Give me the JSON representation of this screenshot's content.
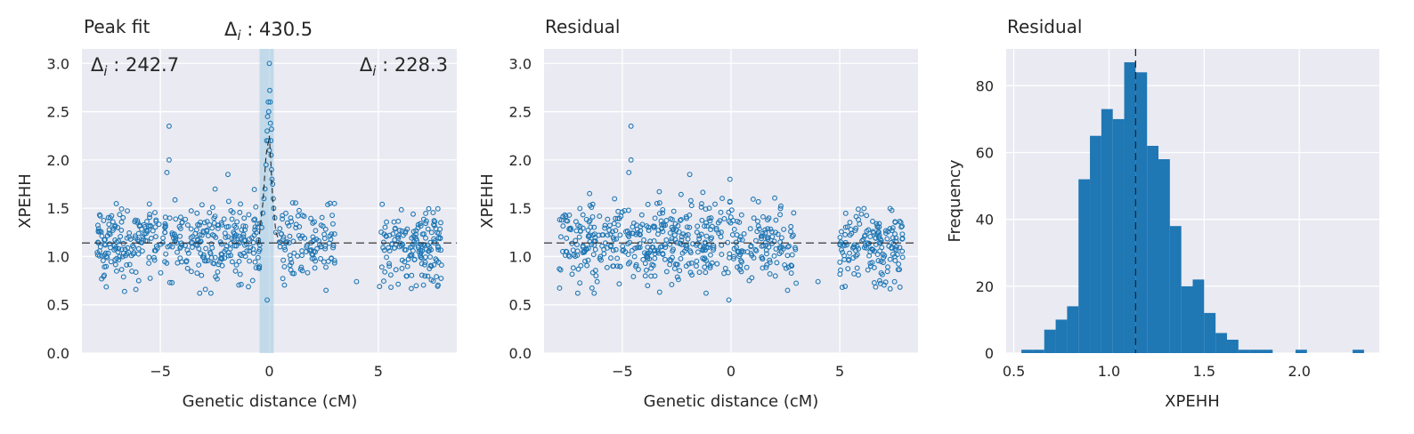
{
  "colors": {
    "background": "#eaeaf2",
    "grid": "#ffffff",
    "marker": "#1f77b4",
    "bar": "#1f77b4",
    "band": "#9ecae1",
    "reference_line": "#262626"
  },
  "panels": {
    "peak_fit": {
      "title": "Peak fit",
      "xlabel": "Genetic distance (cM)",
      "ylabel": "XPEHH"
    },
    "residual_scatter": {
      "title": "Residual",
      "xlabel": "Genetic distance (cM)",
      "ylabel": "XPEHH"
    },
    "residual_hist": {
      "title": "Residual",
      "xlabel": "XPEHH",
      "ylabel": "Frequency"
    }
  },
  "annotations": {
    "delta_left": "Δi : 242.7",
    "delta_center": "Δi : 430.5",
    "delta_right": "Δi : 228.3"
  },
  "chart_data": [
    {
      "type": "scatter",
      "title": "Peak fit",
      "xlabel": "Genetic distance (cM)",
      "ylabel": "XPEHH",
      "xlim": [
        -8.6,
        8.6
      ],
      "ylim": [
        0,
        3.15
      ],
      "xticks": [
        -5,
        0,
        5
      ],
      "xtick_labels": [
        "−5",
        "0",
        "5"
      ],
      "yticks": [
        0,
        0.5,
        1.0,
        1.5,
        2.0,
        2.5,
        3.0
      ],
      "ytick_labels": [
        "0.0",
        "0.5",
        "1.0",
        "1.5",
        "2.0",
        "2.5",
        "3.0"
      ],
      "baseline": 1.14,
      "highlight_band": [
        -0.45,
        0.2
      ],
      "peak_line": {
        "x": [
          -0.5,
          -0.3,
          -0.15,
          0.0,
          0.05,
          0.15,
          0.3,
          0.5
        ],
        "y": [
          1.14,
          1.55,
          2.05,
          2.25,
          2.05,
          1.6,
          1.25,
          1.14
        ]
      },
      "clusters": [
        {
          "x_range": [
            -7.9,
            -0.4
          ],
          "n": 380,
          "mean": 1.14,
          "sd": 0.2
        },
        {
          "x_range": [
            0.3,
            3.0
          ],
          "n": 110,
          "mean": 1.14,
          "sd": 0.19
        },
        {
          "x_range": [
            5.0,
            7.9
          ],
          "n": 160,
          "mean": 1.11,
          "sd": 0.19
        }
      ],
      "peak_points": [
        [
          -0.3,
          1.45
        ],
        [
          -0.25,
          1.6
        ],
        [
          -0.2,
          1.7
        ],
        [
          -0.15,
          1.95
        ],
        [
          -0.12,
          2.2
        ],
        [
          -0.1,
          2.3
        ],
        [
          -0.08,
          2.45
        ],
        [
          -0.05,
          2.2
        ],
        [
          -0.03,
          2.5
        ],
        [
          0.0,
          2.1
        ],
        [
          0.0,
          3.0
        ],
        [
          0.02,
          2.72
        ],
        [
          0.04,
          2.6
        ],
        [
          0.05,
          2.38
        ],
        [
          0.07,
          2.2
        ],
        [
          0.08,
          2.05
        ],
        [
          0.1,
          1.9
        ],
        [
          0.12,
          1.8
        ],
        [
          0.15,
          1.75
        ],
        [
          0.18,
          1.6
        ],
        [
          0.2,
          1.5
        ],
        [
          0.25,
          1.4
        ],
        [
          -0.35,
          1.3
        ],
        [
          0.3,
          1.25
        ],
        [
          0.1,
          2.32
        ],
        [
          -0.05,
          2.6
        ]
      ],
      "outliers": [
        [
          -4.6,
          2.35
        ],
        [
          -4.6,
          2.0
        ],
        [
          -4.7,
          1.87
        ],
        [
          -1.9,
          1.85
        ],
        [
          4.0,
          0.74
        ],
        [
          2.6,
          0.65
        ],
        [
          -0.1,
          0.55
        ]
      ]
    },
    {
      "type": "scatter",
      "title": "Residual",
      "xlabel": "Genetic distance (cM)",
      "ylabel": "XPEHH",
      "xlim": [
        -8.6,
        8.6
      ],
      "ylim": [
        0,
        3.15
      ],
      "xticks": [
        -5,
        0,
        5
      ],
      "xtick_labels": [
        "−5",
        "0",
        "5"
      ],
      "yticks": [
        0,
        0.5,
        1.0,
        1.5,
        2.0,
        2.5,
        3.0
      ],
      "ytick_labels": [
        "0.0",
        "0.5",
        "1.0",
        "1.5",
        "2.0",
        "2.5",
        "3.0"
      ],
      "baseline": 1.14,
      "clusters": [
        {
          "x_range": [
            -7.9,
            -0.4
          ],
          "n": 380,
          "mean": 1.14,
          "sd": 0.2
        },
        {
          "x_range": [
            -0.4,
            0.3
          ],
          "n": 25,
          "mean": 1.15,
          "sd": 0.25
        },
        {
          "x_range": [
            0.3,
            3.0
          ],
          "n": 110,
          "mean": 1.14,
          "sd": 0.19
        },
        {
          "x_range": [
            5.0,
            7.9
          ],
          "n": 160,
          "mean": 1.11,
          "sd": 0.19
        }
      ],
      "outliers": [
        [
          -4.6,
          2.35
        ],
        [
          -4.6,
          2.0
        ],
        [
          -4.7,
          1.87
        ],
        [
          -1.9,
          1.85
        ],
        [
          4.0,
          0.74
        ],
        [
          2.6,
          0.65
        ],
        [
          -0.1,
          0.55
        ],
        [
          -0.05,
          1.8
        ]
      ]
    },
    {
      "type": "histogram",
      "title": "Residual",
      "xlabel": "XPEHH",
      "ylabel": "Frequency",
      "xlim": [
        0.46,
        2.42
      ],
      "ylim": [
        0,
        91
      ],
      "xticks": [
        0.5,
        1.0,
        1.5,
        2.0
      ],
      "xtick_labels": [
        "0.5",
        "1.0",
        "1.5",
        "2.0"
      ],
      "yticks": [
        0,
        20,
        40,
        60,
        80
      ],
      "ytick_labels": [
        "0",
        "20",
        "40",
        "60",
        "80"
      ],
      "bin_edges": [
        0.54,
        0.6,
        0.66,
        0.72,
        0.78,
        0.84,
        0.9,
        0.96,
        1.02,
        1.08,
        1.14,
        1.2,
        1.26,
        1.32,
        1.38,
        1.44,
        1.5,
        1.56,
        1.62,
        1.68,
        1.74,
        1.8,
        1.86,
        1.92,
        1.98,
        2.04,
        2.1,
        2.16,
        2.22,
        2.28,
        2.34,
        2.4
      ],
      "counts": [
        1,
        1,
        7,
        10,
        14,
        52,
        65,
        73,
        70,
        87,
        84,
        62,
        58,
        38,
        20,
        22,
        12,
        6,
        4,
        1,
        1,
        1,
        0,
        0,
        1,
        0,
        0,
        0,
        0,
        1,
        0
      ],
      "vline": 1.14
    }
  ]
}
